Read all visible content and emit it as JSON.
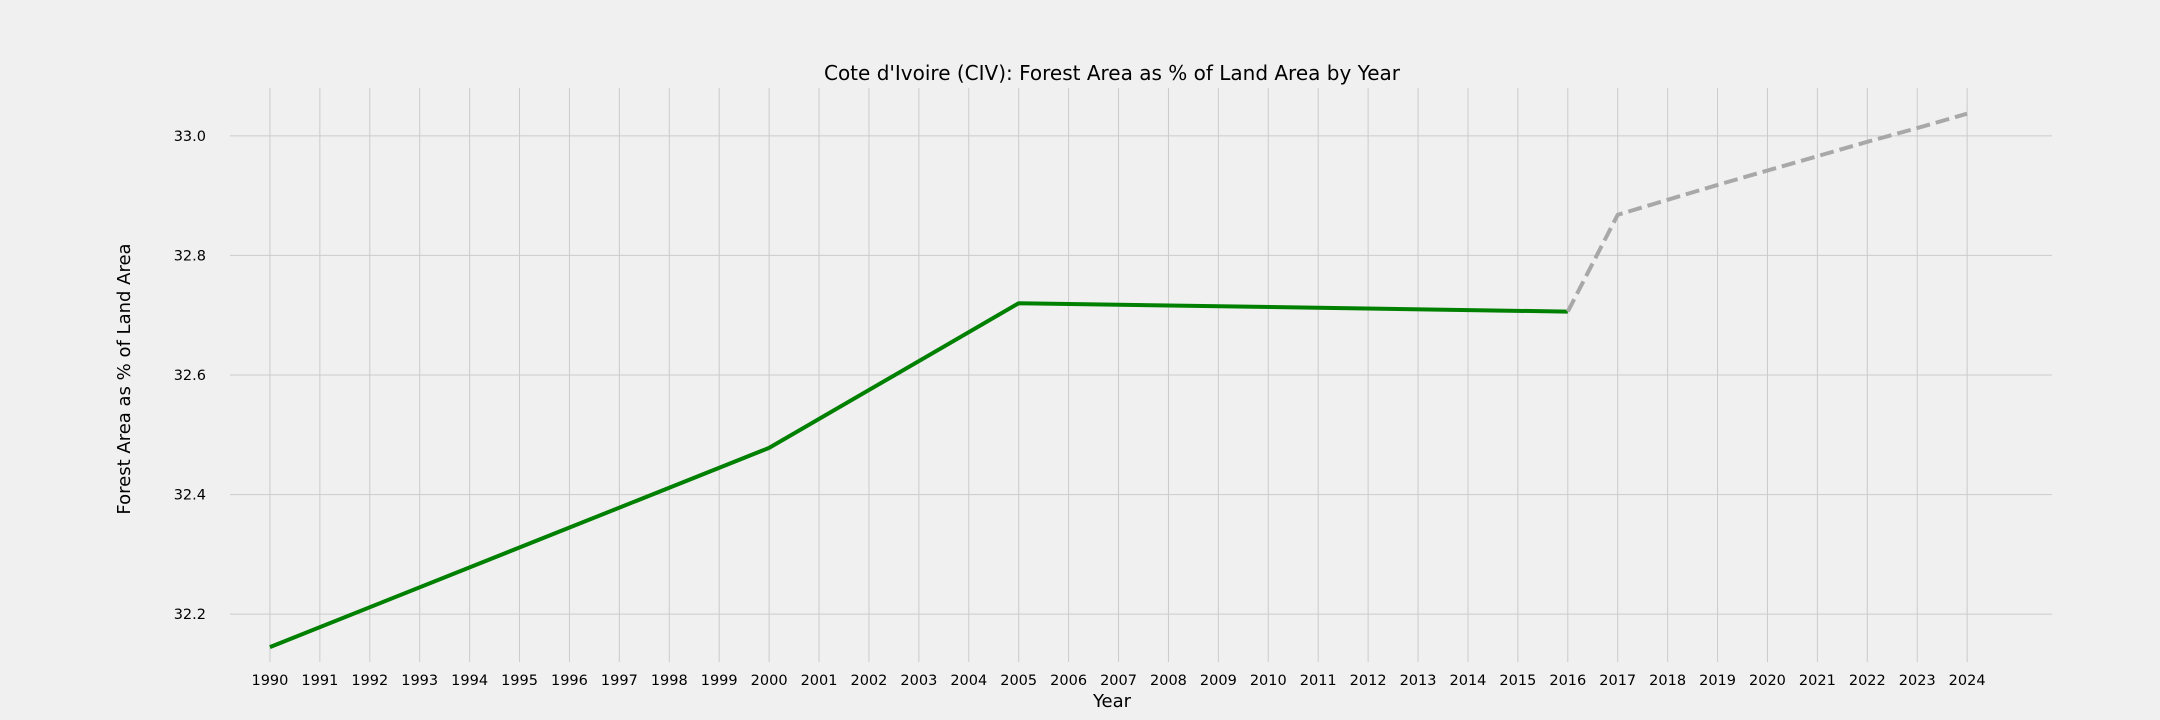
{
  "chart_data": {
    "type": "line",
    "title": "Cote d'Ivoire (CIV): Forest Area as % of Land Area by Year",
    "xlabel": "Year",
    "ylabel": "Forest Area as % of Land Area",
    "x_ticks": [
      "1990",
      "1991",
      "1992",
      "1993",
      "1994",
      "1995",
      "1996",
      "1997",
      "1998",
      "1999",
      "2000",
      "2001",
      "2002",
      "2003",
      "2004",
      "2005",
      "2006",
      "2007",
      "2008",
      "2009",
      "2010",
      "2011",
      "2012",
      "2013",
      "2014",
      "2015",
      "2016",
      "2017",
      "2018",
      "2019",
      "2020",
      "2021",
      "2022",
      "2023",
      "2024"
    ],
    "y_ticks": [
      32.2,
      32.4,
      32.6,
      32.8,
      33.0
    ],
    "xlim": [
      1989.2,
      2025.7
    ],
    "ylim": [
      32.12,
      33.08
    ],
    "grid": true,
    "series": [
      {
        "style": "solid",
        "color": "#008000",
        "x": [
          1990,
          2000,
          2005,
          2016
        ],
        "values": [
          32.145,
          32.478,
          32.72,
          32.706
        ]
      },
      {
        "style": "dashed",
        "color": "#a8a8a8",
        "x": [
          2016,
          2017,
          2018,
          2019,
          2020,
          2021,
          2022,
          2023,
          2024
        ],
        "values": [
          32.706,
          32.868,
          32.893,
          32.918,
          32.942,
          32.966,
          32.99,
          33.013,
          33.037
        ]
      }
    ]
  }
}
